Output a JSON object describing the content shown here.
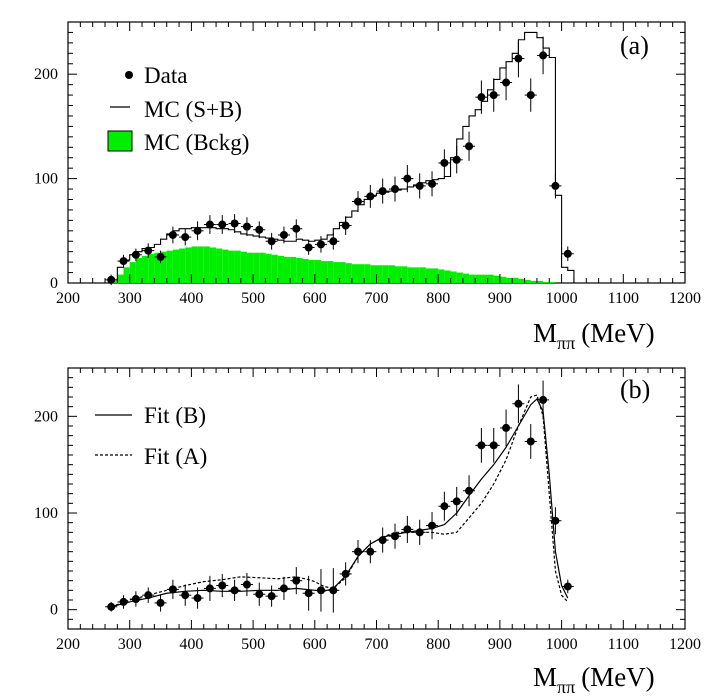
{
  "chart_data": [
    {
      "type": "histogram",
      "panel_label": "(a)",
      "xlabel_main": "M",
      "xlabel_sub": "ππ",
      "xlabel_unit": "(MeV)",
      "xlim": [
        200,
        1200
      ],
      "ylim": [
        0,
        250
      ],
      "xticks": [
        200,
        300,
        400,
        500,
        600,
        700,
        800,
        900,
        1000,
        1100,
        1200
      ],
      "yticks": [
        0,
        100,
        200
      ],
      "colors": {
        "background": "#00ee00",
        "data": "#000000",
        "mc": "#000000"
      },
      "legend": [
        {
          "label": "Data",
          "marker": "dot"
        },
        {
          "label": "MC (S+B)",
          "marker": "line"
        },
        {
          "label": "MC (Bckg)",
          "marker": "filled-box"
        }
      ],
      "bin_edges": [
        270,
        280,
        290,
        300,
        310,
        320,
        330,
        340,
        350,
        360,
        370,
        380,
        390,
        400,
        410,
        420,
        430,
        440,
        450,
        460,
        470,
        480,
        490,
        500,
        510,
        520,
        530,
        540,
        550,
        560,
        570,
        580,
        590,
        600,
        610,
        620,
        630,
        640,
        650,
        660,
        670,
        680,
        690,
        700,
        710,
        720,
        730,
        740,
        750,
        760,
        770,
        780,
        790,
        800,
        810,
        820,
        830,
        840,
        850,
        860,
        870,
        880,
        890,
        900,
        910,
        920,
        930,
        940,
        950,
        960,
        970,
        980,
        990,
        1000,
        1010,
        1020
      ],
      "mc_signal_plus_background": [
        3,
        15,
        22,
        27,
        30,
        33,
        34,
        37,
        42,
        47,
        50,
        52,
        52,
        53,
        53,
        53,
        53,
        52,
        52,
        51,
        49,
        47,
        46,
        45,
        44,
        43,
        42,
        41,
        40,
        40,
        42,
        41,
        40,
        41,
        42,
        46,
        52,
        58,
        63,
        69,
        75,
        80,
        84,
        86,
        87,
        88,
        89,
        90,
        92,
        94,
        96,
        98,
        99,
        100,
        102,
        120,
        138,
        150,
        160,
        166,
        174,
        185,
        195,
        206,
        212,
        220,
        233,
        240,
        240,
        235,
        225,
        216,
        84,
        15,
        12,
        0
      ],
      "mc_background": [
        2,
        8,
        15,
        20,
        24,
        26,
        28,
        29,
        30,
        31,
        32,
        33,
        34,
        35,
        35,
        35,
        34,
        33,
        32,
        31,
        31,
        30,
        29,
        29,
        29,
        28,
        27,
        26,
        25,
        25,
        24,
        23,
        22,
        22,
        21,
        21,
        20,
        20,
        19,
        18,
        18,
        18,
        17,
        17,
        17,
        17,
        16,
        16,
        15,
        15,
        15,
        14,
        14,
        13,
        12,
        11,
        10,
        9,
        8,
        8,
        8,
        8,
        7,
        6,
        5,
        5,
        4,
        3,
        2,
        2,
        1,
        1,
        0,
        0,
        0,
        0
      ],
      "data": {
        "x": [
          270,
          290,
          310,
          330,
          350,
          370,
          390,
          410,
          430,
          450,
          470,
          490,
          510,
          530,
          550,
          570,
          590,
          610,
          630,
          650,
          670,
          690,
          710,
          730,
          750,
          770,
          790,
          810,
          830,
          850,
          870,
          890,
          910,
          930,
          950,
          970,
          990,
          1010
        ],
        "y": [
          3,
          21,
          27,
          31,
          25,
          46,
          44,
          50,
          56,
          56,
          57,
          54,
          51,
          40,
          46,
          52,
          34,
          37,
          40,
          55,
          78,
          83,
          88,
          90,
          100,
          93,
          95,
          115,
          118,
          131,
          178,
          180,
          192,
          215,
          180,
          218,
          93,
          28
        ],
        "err": [
          5,
          6,
          6,
          7,
          6,
          8,
          8,
          9,
          9,
          9,
          9,
          9,
          8,
          8,
          8,
          9,
          7,
          8,
          8,
          9,
          10,
          11,
          12,
          12,
          13,
          12,
          12,
          13,
          13,
          14,
          16,
          16,
          17,
          18,
          16,
          18,
          12,
          7
        ]
      }
    },
    {
      "type": "line",
      "panel_label": "(b)",
      "xlabel_main": "M",
      "xlabel_sub": "ππ",
      "xlabel_unit": "(MeV)",
      "xlim": [
        200,
        1200
      ],
      "ylim": [
        -20,
        250
      ],
      "xticks": [
        200,
        300,
        400,
        500,
        600,
        700,
        800,
        900,
        1000,
        1100,
        1200
      ],
      "yticks": [
        0,
        100,
        200
      ],
      "legend": [
        {
          "label": "Fit (B)",
          "style": "solid"
        },
        {
          "label": "Fit (A)",
          "style": "dashed"
        }
      ],
      "series": [
        {
          "name": "Fit (B)",
          "style": "solid",
          "x": [
            270,
            300,
            330,
            360,
            390,
            420,
            450,
            480,
            510,
            540,
            570,
            600,
            615,
            630,
            650,
            670,
            690,
            710,
            730,
            750,
            770,
            790,
            810,
            830,
            850,
            870,
            890,
            910,
            930,
            950,
            960,
            970,
            980,
            990,
            1000,
            1010
          ],
          "y": [
            3,
            8,
            12,
            17,
            19,
            20,
            19,
            19,
            20,
            20,
            22,
            20,
            19,
            22,
            35,
            55,
            68,
            75,
            78,
            80,
            82,
            84,
            88,
            100,
            118,
            135,
            150,
            168,
            190,
            212,
            218,
            205,
            140,
            60,
            25,
            12
          ]
        },
        {
          "name": "Fit (A)",
          "style": "dashed",
          "x": [
            270,
            300,
            330,
            360,
            390,
            420,
            450,
            480,
            510,
            540,
            570,
            590,
            600,
            615,
            630,
            650,
            670,
            690,
            710,
            730,
            750,
            770,
            790,
            810,
            830,
            850,
            870,
            890,
            910,
            930,
            950,
            960,
            970,
            980,
            990,
            1000,
            1010
          ],
          "y": [
            3,
            10,
            15,
            20,
            25,
            29,
            31,
            34,
            33,
            32,
            34,
            31,
            29,
            24,
            22,
            33,
            55,
            68,
            75,
            80,
            80,
            80,
            80,
            78,
            80,
            95,
            110,
            130,
            155,
            190,
            220,
            222,
            200,
            120,
            40,
            15,
            8
          ]
        }
      ],
      "data": {
        "x": [
          270,
          290,
          310,
          330,
          350,
          370,
          390,
          410,
          430,
          450,
          470,
          490,
          510,
          530,
          550,
          570,
          590,
          610,
          630,
          650,
          670,
          690,
          710,
          730,
          750,
          770,
          790,
          810,
          830,
          850,
          870,
          890,
          910,
          930,
          950,
          970,
          990,
          1010
        ],
        "y": [
          3,
          8,
          11,
          15,
          7,
          21,
          15,
          12,
          22,
          25,
          20,
          26,
          16,
          14,
          22,
          30,
          17,
          20,
          20,
          37,
          60,
          60,
          72,
          76,
          83,
          80,
          87,
          107,
          112,
          123,
          170,
          170,
          188,
          213,
          174,
          217,
          92,
          24
        ],
        "err": [
          5,
          7,
          8,
          8,
          9,
          10,
          11,
          11,
          13,
          12,
          11,
          12,
          12,
          11,
          12,
          14,
          18,
          22,
          23,
          12,
          12,
          12,
          13,
          13,
          14,
          13,
          14,
          15,
          15,
          16,
          18,
          18,
          19,
          20,
          18,
          20,
          14,
          7
        ]
      }
    }
  ]
}
